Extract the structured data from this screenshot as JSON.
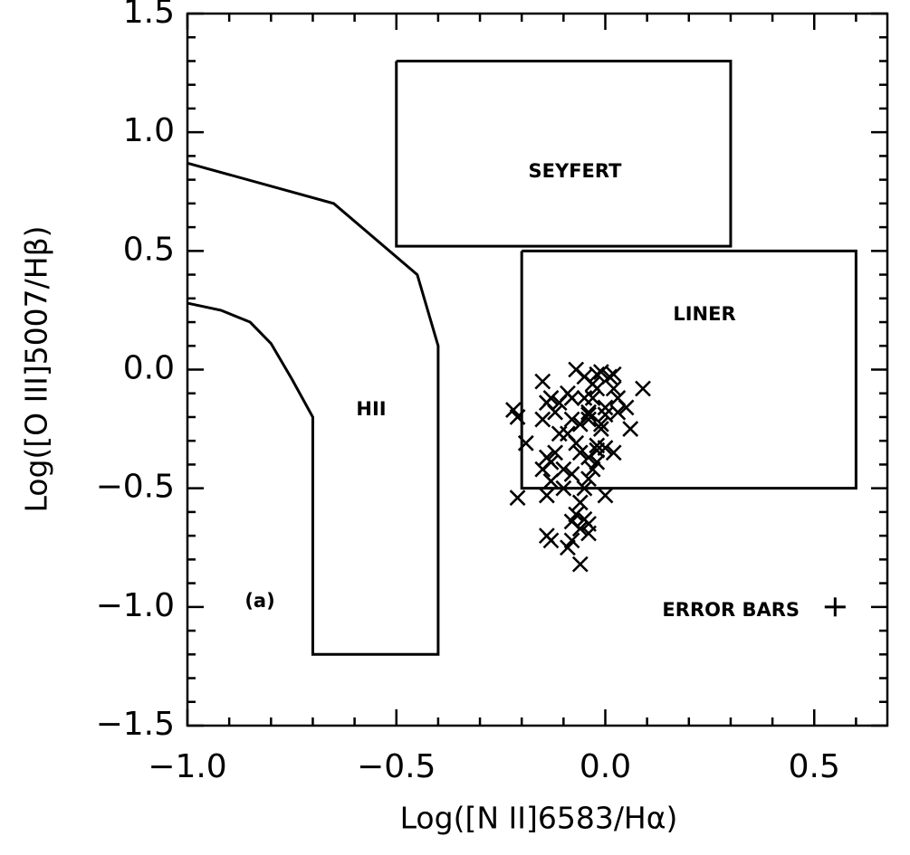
{
  "chart_data": {
    "type": "scatter",
    "xlabel": "Log([N II]6583/Hα)",
    "ylabel": "Log([O III]5007/Hβ)",
    "xlim": [
      -1.0,
      0.675
    ],
    "ylim": [
      -1.5,
      1.5
    ],
    "xticks": [
      {
        "value": -1.0,
        "label": "−1.0"
      },
      {
        "value": -0.5,
        "label": "−0.5"
      },
      {
        "value": 0,
        "label": "0.0"
      },
      0.5
    ],
    "yticks": [
      {
        "value": -1.5,
        "label": "−1.5"
      },
      {
        "value": -1.0,
        "label": "−1.0"
      },
      {
        "value": -0.5,
        "label": "−0.5"
      },
      {
        "value": 0,
        "label": "0.0"
      },
      0.5,
      {
        "value": 1.0,
        "label": "1.0"
      },
      1.5
    ],
    "xminorticks": [
      -0.9,
      -0.8,
      -0.7,
      -0.6,
      -0.4,
      -0.3,
      -0.2,
      -0.1,
      0.1,
      0.2,
      0.3,
      0.4,
      0.6
    ],
    "yminorticks": [
      -1.4,
      -1.3,
      -1.2,
      -1.1,
      -0.9,
      -0.8,
      -0.7,
      -0.6,
      -0.4,
      -0.3,
      -0.2,
      -0.1,
      0.1,
      0.2,
      0.3,
      0.4,
      0.6,
      0.7,
      0.8,
      0.9,
      1.1,
      1.2,
      1.3,
      1.4
    ],
    "color": "#000000",
    "regions": [
      {
        "label": "SEYFERT",
        "x": [
          -0.5,
          0.3,
          0.3,
          -0.5,
          -0.5
        ],
        "y": [
          1.3,
          1.3,
          0.52,
          0.52,
          1.3
        ]
      },
      {
        "label": "LINER",
        "x": [
          -0.2,
          0.6,
          0.6,
          -0.2,
          -0.2
        ],
        "y": [
          0.5,
          0.5,
          -0.5,
          -0.5,
          0.5
        ]
      },
      {
        "label": "HII",
        "x": [
          -1.0,
          -0.65,
          -0.45,
          -0.4,
          -0.4,
          -0.7,
          -0.7,
          -0.75,
          -0.8,
          -0.85,
          -0.92,
          -1.0
        ],
        "y": [
          0.87,
          0.7,
          0.4,
          0.1,
          -1.2,
          -1.2,
          -0.2,
          -0.04,
          0.11,
          0.2,
          0.25,
          0.28
        ]
      }
    ],
    "annotations": [
      "(a)",
      "ERROR BARS"
    ],
    "error_bar": {
      "x": 0.55,
      "y": -1.0,
      "xerr": 0.025,
      "yerr": 0.04
    },
    "x": [
      -0.22,
      -0.21,
      -0.15,
      -0.19,
      -0.14,
      -0.13,
      -0.15,
      -0.12,
      -0.09,
      -0.07,
      -0.05,
      -0.03,
      -0.02,
      -0.01,
      0.01,
      0.02,
      0.03,
      0.05,
      0.09,
      0.06,
      0.03,
      0.0,
      -0.01,
      -0.04,
      -0.06,
      -0.08,
      -0.11,
      -0.14,
      -0.13,
      -0.1,
      -0.13,
      -0.14,
      -0.15,
      -0.21,
      -0.06,
      -0.04,
      -0.03,
      -0.02,
      0.0,
      0.02,
      0.0,
      -0.05,
      -0.06,
      -0.08,
      -0.09,
      -0.07,
      -0.04,
      -0.03,
      -0.02,
      -0.01,
      0.0,
      0.02,
      -0.02,
      -0.04,
      -0.07,
      -0.05,
      -0.06,
      -0.08,
      -0.04,
      -0.04,
      -0.14,
      -0.13,
      -0.09,
      -0.08,
      -0.06,
      -0.04,
      -0.05,
      -0.11,
      -0.08,
      -0.12,
      -0.1,
      -0.02
    ],
    "y": [
      -0.17,
      -0.2,
      -0.05,
      -0.31,
      -0.14,
      -0.12,
      -0.21,
      -0.18,
      -0.1,
      0.0,
      -0.03,
      -0.06,
      -0.02,
      -0.01,
      -0.03,
      -0.02,
      -0.12,
      -0.16,
      -0.08,
      -0.25,
      -0.18,
      -0.19,
      -0.23,
      -0.21,
      -0.23,
      -0.21,
      -0.27,
      -0.37,
      -0.39,
      -0.42,
      -0.47,
      -0.53,
      -0.42,
      -0.54,
      -0.35,
      -0.37,
      -0.42,
      -0.32,
      -0.33,
      -0.35,
      -0.53,
      -0.5,
      -0.56,
      -0.44,
      -0.27,
      -0.31,
      -0.18,
      -0.12,
      -0.08,
      -0.25,
      -0.16,
      -0.08,
      -0.39,
      -0.46,
      -0.61,
      -0.63,
      -0.67,
      -0.64,
      -0.65,
      -0.69,
      -0.7,
      -0.72,
      -0.75,
      -0.72,
      -0.82,
      -0.19,
      -0.12,
      -0.14,
      -0.12,
      -0.35,
      -0.5,
      -0.34
    ]
  }
}
